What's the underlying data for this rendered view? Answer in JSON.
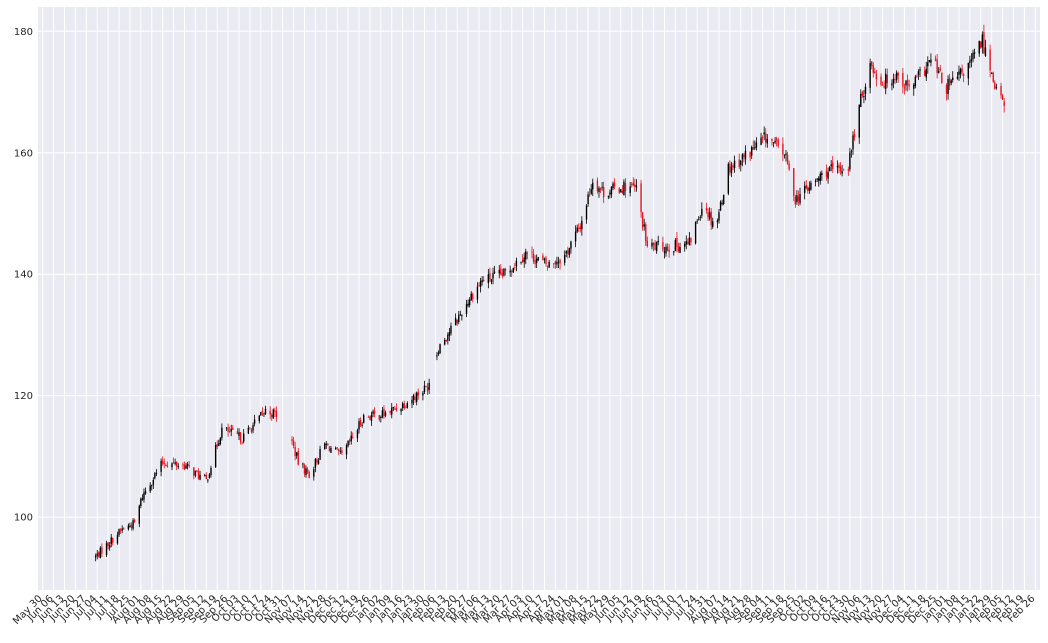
{
  "colors": {
    "plot_bg": "#EAEAF2",
    "grid": "#FFFFFF",
    "up": "#000000",
    "down": "#E8131E",
    "text": "#262626"
  },
  "chart_data": {
    "type": "candlestick",
    "title": "",
    "xlabel": "",
    "ylabel": "",
    "xlim": [
      "2017-05-27",
      "2019-03-01"
    ],
    "ylim": [
      88,
      184
    ],
    "grid": true,
    "yticks": [
      100,
      120,
      140,
      160,
      180
    ],
    "xtick_labels": [
      "May 30",
      "Jun 06",
      "Jun 13",
      "Jun 20",
      "Jun 27",
      "Jul 04",
      "Jul 11",
      "Jul 18",
      "Jul 25",
      "Aug 01",
      "Aug 08",
      "Aug 15",
      "Aug 22",
      "Aug 29",
      "Sep 05",
      "Sep 12",
      "Sep 19",
      "Sep 26",
      "Oct 03",
      "Oct 10",
      "Oct 17",
      "Oct 24",
      "Oct 31",
      "Nov 07",
      "Nov 14",
      "Nov 21",
      "Nov 28",
      "Dec 05",
      "Dec 12",
      "Dec 19",
      "Dec 26",
      "Jan 02",
      "Jan 09",
      "Jan 16",
      "Jan 23",
      "Jan 30",
      "Feb 06",
      "Feb 13",
      "Feb 20",
      "Feb 27",
      "Mar 06",
      "Mar 13",
      "Mar 20",
      "Mar 27",
      "Apr 03",
      "Apr 10",
      "Apr 17",
      "Apr 24",
      "May 01",
      "May 08",
      "May 15",
      "May 22",
      "May 29",
      "Jun 05",
      "Jun 12",
      "Jun 19",
      "Jun 26",
      "Jul 03",
      "Jul 10",
      "Jul 17",
      "Jul 24",
      "Jul 31",
      "Aug 07",
      "Aug 14",
      "Aug 21",
      "Aug 28",
      "Sep 04",
      "Sep 11",
      "Sep 18",
      "Sep 25",
      "Oct 02",
      "Oct 09",
      "Oct 16",
      "Oct 23",
      "Oct 30",
      "Nov 06",
      "Nov 13",
      "Nov 20",
      "Nov 27",
      "Dec 04",
      "Dec 11",
      "Dec 18",
      "Dec 25",
      "Jan 01",
      "Jan 08",
      "Jan 15",
      "Jan 22",
      "Jan 29",
      "Feb 05",
      "Feb 12",
      "Feb 19",
      "Feb 26"
    ],
    "trend": [
      [
        "2017-07-03",
        93.5
      ],
      [
        "2017-07-20",
        98
      ],
      [
        "2017-07-28",
        99
      ],
      [
        "2017-08-02",
        103.5
      ],
      [
        "2017-08-15",
        109
      ],
      [
        "2017-08-29",
        108.5
      ],
      [
        "2017-09-12",
        106
      ],
      [
        "2017-09-22",
        114.5
      ],
      [
        "2017-10-05",
        113
      ],
      [
        "2017-10-20",
        117.5
      ],
      [
        "2017-11-01",
        116.5
      ],
      [
        "2017-11-10",
        109
      ],
      [
        "2017-11-17",
        107
      ],
      [
        "2017-11-27",
        112
      ],
      [
        "2017-12-08",
        110
      ],
      [
        "2017-12-22",
        116.5
      ],
      [
        "2018-01-05",
        117
      ],
      [
        "2018-01-19",
        119
      ],
      [
        "2018-02-01",
        121.5
      ],
      [
        "2018-02-08",
        128
      ],
      [
        "2018-02-20",
        132.5
      ],
      [
        "2018-03-01",
        136.5
      ],
      [
        "2018-03-08",
        139
      ],
      [
        "2018-03-22",
        140
      ],
      [
        "2018-04-05",
        143.5
      ],
      [
        "2018-04-19",
        141.5
      ],
      [
        "2018-04-30",
        143
      ],
      [
        "2018-05-10",
        148
      ],
      [
        "2018-05-18",
        155.5
      ],
      [
        "2018-05-25",
        153.5
      ],
      [
        "2018-06-08",
        154.5
      ],
      [
        "2018-06-15",
        154
      ],
      [
        "2018-06-22",
        144.5
      ],
      [
        "2018-07-05",
        144.5
      ],
      [
        "2018-07-19",
        145
      ],
      [
        "2018-07-28",
        152
      ],
      [
        "2018-08-02",
        149
      ],
      [
        "2018-08-06",
        149
      ],
      [
        "2018-08-13",
        157.5
      ],
      [
        "2018-08-24",
        159.5
      ],
      [
        "2018-09-06",
        162.5
      ],
      [
        "2018-09-18",
        160
      ],
      [
        "2018-09-25",
        152.5
      ],
      [
        "2018-10-05",
        154.5
      ],
      [
        "2018-10-15",
        157
      ],
      [
        "2018-10-22",
        157
      ],
      [
        "2018-10-29",
        158
      ],
      [
        "2018-11-05",
        167.5
      ],
      [
        "2018-11-12",
        174.5
      ],
      [
        "2018-11-20",
        171.5
      ],
      [
        "2018-11-29",
        173
      ],
      [
        "2018-12-07",
        170.5
      ],
      [
        "2018-12-15",
        173
      ],
      [
        "2018-12-22",
        175.5
      ],
      [
        "2018-12-30",
        170.5
      ],
      [
        "2019-01-06",
        172
      ],
      [
        "2019-01-15",
        174.5
      ],
      [
        "2019-01-23",
        178.5
      ],
      [
        "2019-01-31",
        171.5
      ],
      [
        "2019-02-06",
        167.5
      ]
    ],
    "gaps": [
      [
        "2017-10-30",
        "2017-11-05"
      ],
      [
        "2018-02-03",
        "2018-02-06"
      ]
    ]
  }
}
